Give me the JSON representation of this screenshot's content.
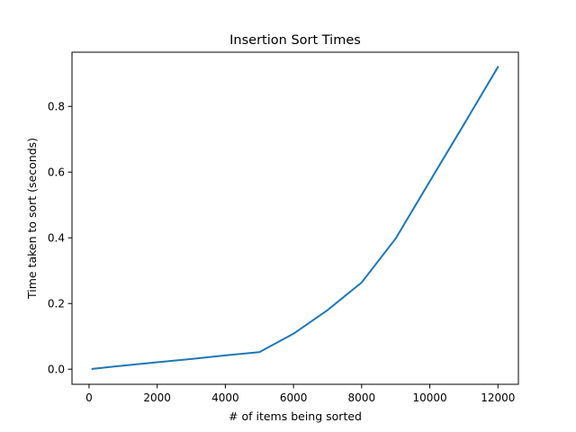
{
  "chart_data": {
    "type": "line",
    "title": "Insertion Sort Times",
    "xlabel": "# of items being sorted",
    "ylabel": "Time taken to sort (seconds)",
    "xlim": [
      -500,
      12600
    ],
    "ylim": [
      -0.046,
      0.965
    ],
    "xticks": [
      0,
      2000,
      4000,
      6000,
      8000,
      10000,
      12000
    ],
    "xtick_labels": [
      "0",
      "2000",
      "4000",
      "6000",
      "8000",
      "10000",
      "12000"
    ],
    "yticks": [
      0.0,
      0.2,
      0.4,
      0.6,
      0.8
    ],
    "ytick_labels": [
      "0.0",
      "0.2",
      "0.4",
      "0.6",
      "0.8"
    ],
    "grid": false,
    "series": [
      {
        "color": "#1f77b4",
        "x": [
          100,
          1000,
          2000,
          3000,
          4000,
          5000,
          6000,
          7000,
          8000,
          9000,
          10000,
          11000,
          12000
        ],
        "y": [
          0.001,
          0.011,
          0.021,
          0.031,
          0.042,
          0.052,
          0.108,
          0.18,
          0.264,
          0.398,
          0.572,
          0.745,
          0.92
        ]
      }
    ]
  }
}
